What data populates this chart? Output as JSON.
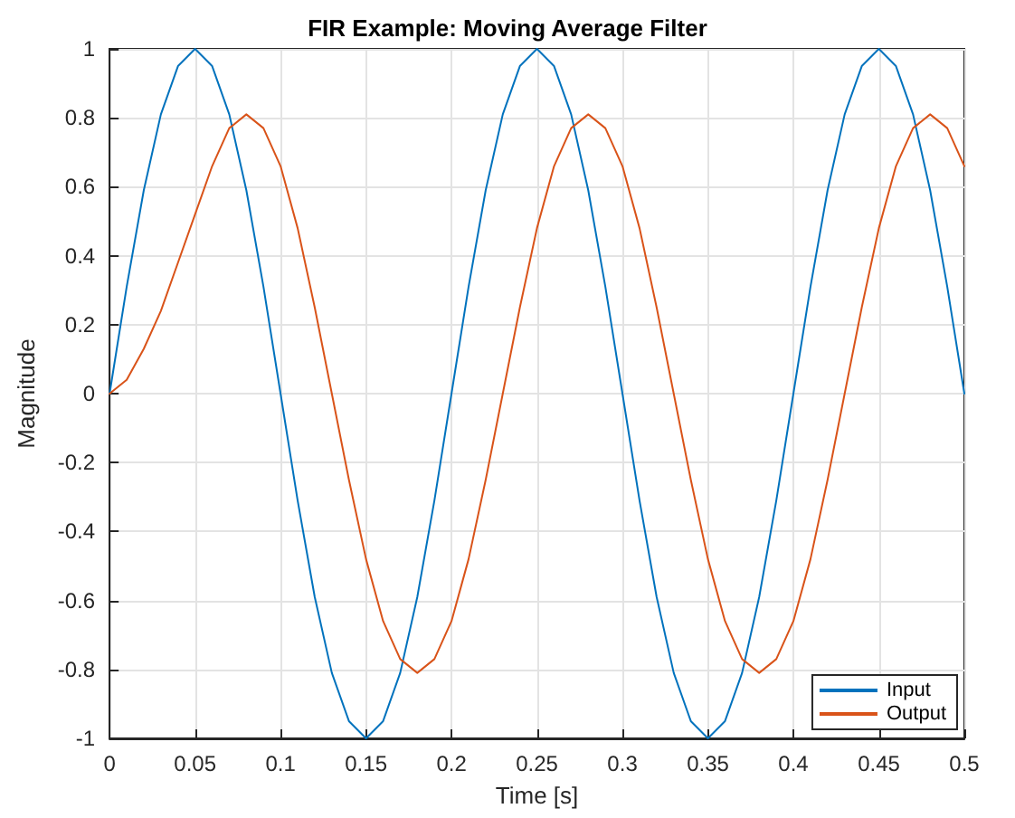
{
  "chart_data": {
    "type": "line",
    "title": "FIR Example: Moving Average Filter",
    "xlabel": "Time [s]",
    "ylabel": "Magnitude",
    "x": [
      0,
      0.01,
      0.02,
      0.03,
      0.04,
      0.05,
      0.06,
      0.07,
      0.08,
      0.09,
      0.1,
      0.11,
      0.12,
      0.13,
      0.14,
      0.15,
      0.16,
      0.17,
      0.18,
      0.19,
      0.2,
      0.21,
      0.22,
      0.23,
      0.24,
      0.25,
      0.26,
      0.27,
      0.28,
      0.29,
      0.3,
      0.31,
      0.32,
      0.33,
      0.34,
      0.35,
      0.36,
      0.37,
      0.38,
      0.39,
      0.4,
      0.41,
      0.42,
      0.43,
      0.44,
      0.45,
      0.46,
      0.47,
      0.48,
      0.49,
      0.5
    ],
    "series": [
      {
        "name": "Input",
        "color": "#0072bd",
        "values": [
          0,
          0.31,
          0.59,
          0.81,
          0.95,
          1,
          0.95,
          0.81,
          0.59,
          0.31,
          0,
          -0.31,
          -0.59,
          -0.81,
          -0.95,
          -1,
          -0.95,
          -0.81,
          -0.59,
          -0.31,
          0,
          0.31,
          0.59,
          0.81,
          0.95,
          1,
          0.95,
          0.81,
          0.59,
          0.31,
          0,
          -0.31,
          -0.59,
          -0.81,
          -0.95,
          -1,
          -0.95,
          -0.81,
          -0.59,
          -0.31,
          0,
          0.31,
          0.59,
          0.81,
          0.95,
          1,
          0.95,
          0.81,
          0.59,
          0.31,
          0
        ]
      },
      {
        "name": "Output",
        "color": "#d95319",
        "values": [
          0,
          0.04,
          0.13,
          0.24,
          0.38,
          0.52,
          0.66,
          0.77,
          0.81,
          0.77,
          0.66,
          0.48,
          0.25,
          0,
          -0.25,
          -0.48,
          -0.66,
          -0.77,
          -0.81,
          -0.77,
          -0.66,
          -0.48,
          -0.25,
          0,
          0.25,
          0.48,
          0.66,
          0.77,
          0.81,
          0.77,
          0.66,
          0.48,
          0.25,
          0,
          -0.25,
          -0.48,
          -0.66,
          -0.77,
          -0.81,
          -0.77,
          -0.66,
          -0.48,
          -0.25,
          0,
          0.25,
          0.48,
          0.66,
          0.77,
          0.81,
          0.77,
          0.66
        ]
      }
    ],
    "xlim": [
      0,
      0.5
    ],
    "xticks": [
      0,
      0.05,
      0.1,
      0.15,
      0.2,
      0.25,
      0.3,
      0.35,
      0.4,
      0.45,
      0.5
    ],
    "ylim": [
      -1,
      1
    ],
    "yticks": [
      -1,
      -0.8,
      -0.6,
      -0.4,
      -0.2,
      0,
      0.2,
      0.4,
      0.6,
      0.8,
      1
    ],
    "grid": true,
    "legend": "bottom right",
    "marker": "none",
    "line_style": "solid"
  }
}
